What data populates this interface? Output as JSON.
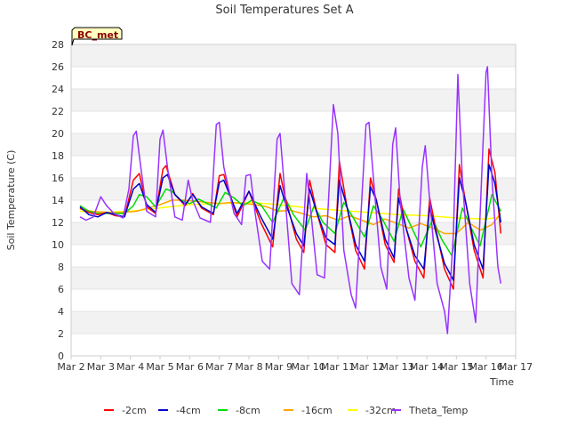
{
  "chart_data": {
    "type": "line",
    "title": "Soil Temperatures Set A",
    "xlabel": "Time",
    "ylabel": "Soil Temperature (C)",
    "site_label": "BC_met",
    "xlim": [
      0,
      15
    ],
    "ylim": [
      0,
      28
    ],
    "x_ticks": [
      {
        "v": 0,
        "label": "Mar 2"
      },
      {
        "v": 1,
        "label": "Mar 3"
      },
      {
        "v": 2,
        "label": "Mar 4"
      },
      {
        "v": 3,
        "label": "Mar 5"
      },
      {
        "v": 4,
        "label": "Mar 6"
      },
      {
        "v": 5,
        "label": "Mar 7"
      },
      {
        "v": 6,
        "label": "Mar 8"
      },
      {
        "v": 7,
        "label": "Mar 9"
      },
      {
        "v": 8,
        "label": "Mar 10"
      },
      {
        "v": 9,
        "label": "Mar 11"
      },
      {
        "v": 10,
        "label": "Mar 12"
      },
      {
        "v": 11,
        "label": "Mar 13"
      },
      {
        "v": 12,
        "label": "Mar 14"
      },
      {
        "v": 13,
        "label": "Mar 15"
      },
      {
        "v": 14,
        "label": "Mar 16"
      },
      {
        "v": 15,
        "label": "Mar 17"
      }
    ],
    "y_ticks": [
      0,
      2,
      4,
      6,
      8,
      10,
      12,
      14,
      16,
      18,
      20,
      22,
      24,
      26,
      28
    ],
    "grid": "horizontal bands",
    "legend_position": "bottom",
    "series": [
      {
        "name": "-2cm",
        "color": "#ff0000",
        "points": [
          [
            0.3,
            13.3
          ],
          [
            0.6,
            12.9
          ],
          [
            0.9,
            12.7
          ],
          [
            1.2,
            12.9
          ],
          [
            1.5,
            12.6
          ],
          [
            1.8,
            12.5
          ],
          [
            2.1,
            15.8
          ],
          [
            2.3,
            16.4
          ],
          [
            2.55,
            13.4
          ],
          [
            2.85,
            12.8
          ],
          [
            3.1,
            16.8
          ],
          [
            3.2,
            17.1
          ],
          [
            3.5,
            14.5
          ],
          [
            3.85,
            13.5
          ],
          [
            4.1,
            14.6
          ],
          [
            4.4,
            13.3
          ],
          [
            4.8,
            12.7
          ],
          [
            5.0,
            16.2
          ],
          [
            5.15,
            16.3
          ],
          [
            5.6,
            12.5
          ],
          [
            6.0,
            14.8
          ],
          [
            6.4,
            12.0
          ],
          [
            6.8,
            9.8
          ],
          [
            7.05,
            16.4
          ],
          [
            7.2,
            14.5
          ],
          [
            7.6,
            10.5
          ],
          [
            7.85,
            9.3
          ],
          [
            8.05,
            15.8
          ],
          [
            8.3,
            12.8
          ],
          [
            8.6,
            10.0
          ],
          [
            8.9,
            9.3
          ],
          [
            9.05,
            17.5
          ],
          [
            9.3,
            13.5
          ],
          [
            9.6,
            9.5
          ],
          [
            9.9,
            7.8
          ],
          [
            10.1,
            16.0
          ],
          [
            10.3,
            14.0
          ],
          [
            10.6,
            10.0
          ],
          [
            10.9,
            8.4
          ],
          [
            11.05,
            15.0
          ],
          [
            11.3,
            11.5
          ],
          [
            11.6,
            8.5
          ],
          [
            11.9,
            7.0
          ],
          [
            12.1,
            14.2
          ],
          [
            12.3,
            11.5
          ],
          [
            12.6,
            7.8
          ],
          [
            12.9,
            6.0
          ],
          [
            13.1,
            17.2
          ],
          [
            13.3,
            14.0
          ],
          [
            13.6,
            9.5
          ],
          [
            13.9,
            7.0
          ],
          [
            14.1,
            18.6
          ],
          [
            14.3,
            16.5
          ],
          [
            14.5,
            11.0
          ]
        ]
      },
      {
        "name": "-4cm",
        "color": "#0000cc",
        "points": [
          [
            0.3,
            13.4
          ],
          [
            0.6,
            12.7
          ],
          [
            0.9,
            12.5
          ],
          [
            1.2,
            12.9
          ],
          [
            1.5,
            12.7
          ],
          [
            1.8,
            12.5
          ],
          [
            2.1,
            15.0
          ],
          [
            2.3,
            15.5
          ],
          [
            2.55,
            13.6
          ],
          [
            2.85,
            12.9
          ],
          [
            3.1,
            16.0
          ],
          [
            3.25,
            16.3
          ],
          [
            3.5,
            14.5
          ],
          [
            3.85,
            13.6
          ],
          [
            4.1,
            14.5
          ],
          [
            4.4,
            13.4
          ],
          [
            4.8,
            12.8
          ],
          [
            5.0,
            15.6
          ],
          [
            5.15,
            15.8
          ],
          [
            5.6,
            12.8
          ],
          [
            6.0,
            14.8
          ],
          [
            6.4,
            12.5
          ],
          [
            6.8,
            10.5
          ],
          [
            7.05,
            15.3
          ],
          [
            7.2,
            14.0
          ],
          [
            7.6,
            11.0
          ],
          [
            7.85,
            9.9
          ],
          [
            8.05,
            15.0
          ],
          [
            8.3,
            12.8
          ],
          [
            8.6,
            10.6
          ],
          [
            8.9,
            10.0
          ],
          [
            9.05,
            15.8
          ],
          [
            9.3,
            13.5
          ],
          [
            9.6,
            10.0
          ],
          [
            9.9,
            8.5
          ],
          [
            10.1,
            15.2
          ],
          [
            10.3,
            14.0
          ],
          [
            10.6,
            10.5
          ],
          [
            10.9,
            8.8
          ],
          [
            11.05,
            14.2
          ],
          [
            11.3,
            11.5
          ],
          [
            11.6,
            9.0
          ],
          [
            11.9,
            7.8
          ],
          [
            12.1,
            13.4
          ],
          [
            12.3,
            11.2
          ],
          [
            12.6,
            8.3
          ],
          [
            12.9,
            6.8
          ],
          [
            13.1,
            16.0
          ],
          [
            13.3,
            14.0
          ],
          [
            13.6,
            10.0
          ],
          [
            13.9,
            7.8
          ],
          [
            14.1,
            17.2
          ],
          [
            14.3,
            15.5
          ],
          [
            14.5,
            12.0
          ]
        ]
      },
      {
        "name": "-8cm",
        "color": "#00dd00",
        "points": [
          [
            0.3,
            13.5
          ],
          [
            0.6,
            13.0
          ],
          [
            0.9,
            12.8
          ],
          [
            1.2,
            12.8
          ],
          [
            1.5,
            12.8
          ],
          [
            1.8,
            12.8
          ],
          [
            2.1,
            13.5
          ],
          [
            2.3,
            14.5
          ],
          [
            2.55,
            14.3
          ],
          [
            2.85,
            13.4
          ],
          [
            3.2,
            15.0
          ],
          [
            3.4,
            14.8
          ],
          [
            3.7,
            14.0
          ],
          [
            4.0,
            13.7
          ],
          [
            4.3,
            14.1
          ],
          [
            4.6,
            13.7
          ],
          [
            4.9,
            13.3
          ],
          [
            5.2,
            14.7
          ],
          [
            5.5,
            14.2
          ],
          [
            5.8,
            13.5
          ],
          [
            6.1,
            14.0
          ],
          [
            6.4,
            13.6
          ],
          [
            6.8,
            12.0
          ],
          [
            7.2,
            14.3
          ],
          [
            7.5,
            12.7
          ],
          [
            7.9,
            11.3
          ],
          [
            8.2,
            13.5
          ],
          [
            8.5,
            12.0
          ],
          [
            8.9,
            11.0
          ],
          [
            9.2,
            13.8
          ],
          [
            9.5,
            12.5
          ],
          [
            9.9,
            10.7
          ],
          [
            10.2,
            13.5
          ],
          [
            10.5,
            12.3
          ],
          [
            10.9,
            10.3
          ],
          [
            11.2,
            13.2
          ],
          [
            11.5,
            11.5
          ],
          [
            11.8,
            9.8
          ],
          [
            12.2,
            12.3
          ],
          [
            12.5,
            10.5
          ],
          [
            12.85,
            9.0
          ],
          [
            13.2,
            13.3
          ],
          [
            13.5,
            11.5
          ],
          [
            13.8,
            9.9
          ],
          [
            14.2,
            14.5
          ],
          [
            14.5,
            13.0
          ]
        ]
      },
      {
        "name": "-16cm",
        "color": "#ffa500",
        "points": [
          [
            0.3,
            13.2
          ],
          [
            0.7,
            13.0
          ],
          [
            1.2,
            12.9
          ],
          [
            1.7,
            12.9
          ],
          [
            2.2,
            13.0
          ],
          [
            2.6,
            13.3
          ],
          [
            3.0,
            13.6
          ],
          [
            3.4,
            14.0
          ],
          [
            3.8,
            14.0
          ],
          [
            4.2,
            13.9
          ],
          [
            4.6,
            13.8
          ],
          [
            5.0,
            13.7
          ],
          [
            5.4,
            13.8
          ],
          [
            5.8,
            13.7
          ],
          [
            6.2,
            13.6
          ],
          [
            6.6,
            13.4
          ],
          [
            7.0,
            13.0
          ],
          [
            7.4,
            13.1
          ],
          [
            7.8,
            12.8
          ],
          [
            8.2,
            12.5
          ],
          [
            8.6,
            12.6
          ],
          [
            9.0,
            12.2
          ],
          [
            9.4,
            12.6
          ],
          [
            9.8,
            12.2
          ],
          [
            10.2,
            11.8
          ],
          [
            10.6,
            12.3
          ],
          [
            11.0,
            11.9
          ],
          [
            11.4,
            11.5
          ],
          [
            11.8,
            11.9
          ],
          [
            12.2,
            11.5
          ],
          [
            12.6,
            11.0
          ],
          [
            13.0,
            11.0
          ],
          [
            13.4,
            12.0
          ],
          [
            13.8,
            11.3
          ],
          [
            14.2,
            11.8
          ],
          [
            14.5,
            12.8
          ]
        ]
      },
      {
        "name": "-32cm",
        "color": "#ffff00",
        "points": [
          [
            0.3,
            13.0
          ],
          [
            1.0,
            12.9
          ],
          [
            2.0,
            13.0
          ],
          [
            3.0,
            13.3
          ],
          [
            4.0,
            13.6
          ],
          [
            5.0,
            13.7
          ],
          [
            6.0,
            13.8
          ],
          [
            7.0,
            13.6
          ],
          [
            8.0,
            13.3
          ],
          [
            9.0,
            13.1
          ],
          [
            10.0,
            12.9
          ],
          [
            11.0,
            12.7
          ],
          [
            12.0,
            12.6
          ],
          [
            13.0,
            12.4
          ],
          [
            14.0,
            12.3
          ],
          [
            14.5,
            12.5
          ]
        ]
      },
      {
        "name": "Theta_Temp",
        "color": "#9933ff",
        "points": [
          [
            0.3,
            12.5
          ],
          [
            0.5,
            12.2
          ],
          [
            0.75,
            12.5
          ],
          [
            1.0,
            14.3
          ],
          [
            1.2,
            13.5
          ],
          [
            1.45,
            12.8
          ],
          [
            1.75,
            12.4
          ],
          [
            1.95,
            15.0
          ],
          [
            2.1,
            19.8
          ],
          [
            2.2,
            20.2
          ],
          [
            2.35,
            17.0
          ],
          [
            2.55,
            13.0
          ],
          [
            2.85,
            12.5
          ],
          [
            3.0,
            19.5
          ],
          [
            3.1,
            20.3
          ],
          [
            3.25,
            17.0
          ],
          [
            3.5,
            12.5
          ],
          [
            3.75,
            12.2
          ],
          [
            3.95,
            15.8
          ],
          [
            4.1,
            14.0
          ],
          [
            4.35,
            12.4
          ],
          [
            4.7,
            12.0
          ],
          [
            4.9,
            20.8
          ],
          [
            5.0,
            21.0
          ],
          [
            5.15,
            17.0
          ],
          [
            5.5,
            12.8
          ],
          [
            5.75,
            11.8
          ],
          [
            5.9,
            16.2
          ],
          [
            6.05,
            16.3
          ],
          [
            6.2,
            13.0
          ],
          [
            6.45,
            8.5
          ],
          [
            6.7,
            7.8
          ],
          [
            6.95,
            19.5
          ],
          [
            7.05,
            20.0
          ],
          [
            7.2,
            15.0
          ],
          [
            7.45,
            6.5
          ],
          [
            7.7,
            5.5
          ],
          [
            7.95,
            16.4
          ],
          [
            8.05,
            14.0
          ],
          [
            8.3,
            7.3
          ],
          [
            8.55,
            7.0
          ],
          [
            8.85,
            22.6
          ],
          [
            9.0,
            20.0
          ],
          [
            9.2,
            9.5
          ],
          [
            9.45,
            5.5
          ],
          [
            9.6,
            4.3
          ],
          [
            9.95,
            20.8
          ],
          [
            10.05,
            21.0
          ],
          [
            10.2,
            16.0
          ],
          [
            10.45,
            8.0
          ],
          [
            10.65,
            6.0
          ],
          [
            10.85,
            19.0
          ],
          [
            10.95,
            20.5
          ],
          [
            11.1,
            14.0
          ],
          [
            11.4,
            7.0
          ],
          [
            11.6,
            5.0
          ],
          [
            11.85,
            17.0
          ],
          [
            11.95,
            18.9
          ],
          [
            12.1,
            14.0
          ],
          [
            12.35,
            6.5
          ],
          [
            12.6,
            4.0
          ],
          [
            12.7,
            2.0
          ],
          [
            12.9,
            11.0
          ],
          [
            13.05,
            25.3
          ],
          [
            13.2,
            16.0
          ],
          [
            13.45,
            6.5
          ],
          [
            13.65,
            3.0
          ],
          [
            13.85,
            16.0
          ],
          [
            14.0,
            25.5
          ],
          [
            14.05,
            26.0
          ],
          [
            14.2,
            16.0
          ],
          [
            14.4,
            8.0
          ],
          [
            14.5,
            6.5
          ]
        ]
      }
    ]
  }
}
